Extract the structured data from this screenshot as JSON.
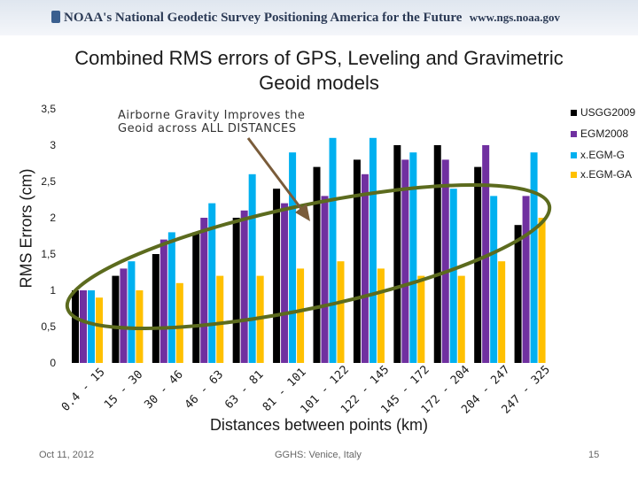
{
  "banner": {
    "title": "NOAA's National Geodetic Survey Positioning America for the Future",
    "url": "www.ngs.noaa.gov"
  },
  "footer": {
    "date": "Oct 11, 2012",
    "venue": "GGHS:  Venice, Italy",
    "page": "15"
  },
  "chart_data": {
    "type": "bar",
    "title": "Combined RMS errors of GPS, Leveling and Gravimetric Geoid models",
    "xlabel": "Distances between points (km)",
    "ylabel": "RMS Errors (cm)",
    "ylim": [
      0,
      3.5
    ],
    "yticks": [
      "0",
      "0,5",
      "1",
      "1,5",
      "2",
      "2,5",
      "3",
      "3,5"
    ],
    "categories": [
      "0.4 - 15",
      "15 - 30",
      "30 - 46",
      "46 - 63",
      "63 - 81",
      "81 - 101",
      "101 - 122",
      "122 - 145",
      "145 - 172",
      "172 - 204",
      "204 - 247",
      "247 - 325"
    ],
    "series": [
      {
        "name": "USGG2009",
        "color": "#000000",
        "values": [
          1.0,
          1.2,
          1.5,
          1.8,
          2.0,
          2.4,
          2.7,
          2.8,
          3.0,
          3.0,
          2.7,
          1.9
        ]
      },
      {
        "name": "EGM2008",
        "color": "#7030a0",
        "values": [
          1.0,
          1.3,
          1.7,
          2.0,
          2.1,
          2.2,
          2.3,
          2.6,
          2.8,
          2.8,
          3.0,
          2.3
        ]
      },
      {
        "name": "x.EGM-G",
        "color": "#00b0f0",
        "values": [
          1.0,
          1.4,
          1.8,
          2.2,
          2.6,
          2.9,
          3.1,
          3.1,
          2.9,
          2.4,
          2.3,
          2.9
        ]
      },
      {
        "name": "x.EGM-GA",
        "color": "#ffc000",
        "values": [
          0.9,
          1.0,
          1.1,
          1.2,
          1.2,
          1.3,
          1.4,
          1.3,
          1.2,
          1.2,
          1.4,
          2.0
        ]
      }
    ],
    "annotation": {
      "text_lines": [
        "Airborne Gravity Improves the",
        "Geoid across ALL DISTANCES"
      ],
      "arrow_color": "#7a5c3a",
      "ellipse_color": "#5c6b1e"
    },
    "legend_position": "right",
    "grid": false
  }
}
